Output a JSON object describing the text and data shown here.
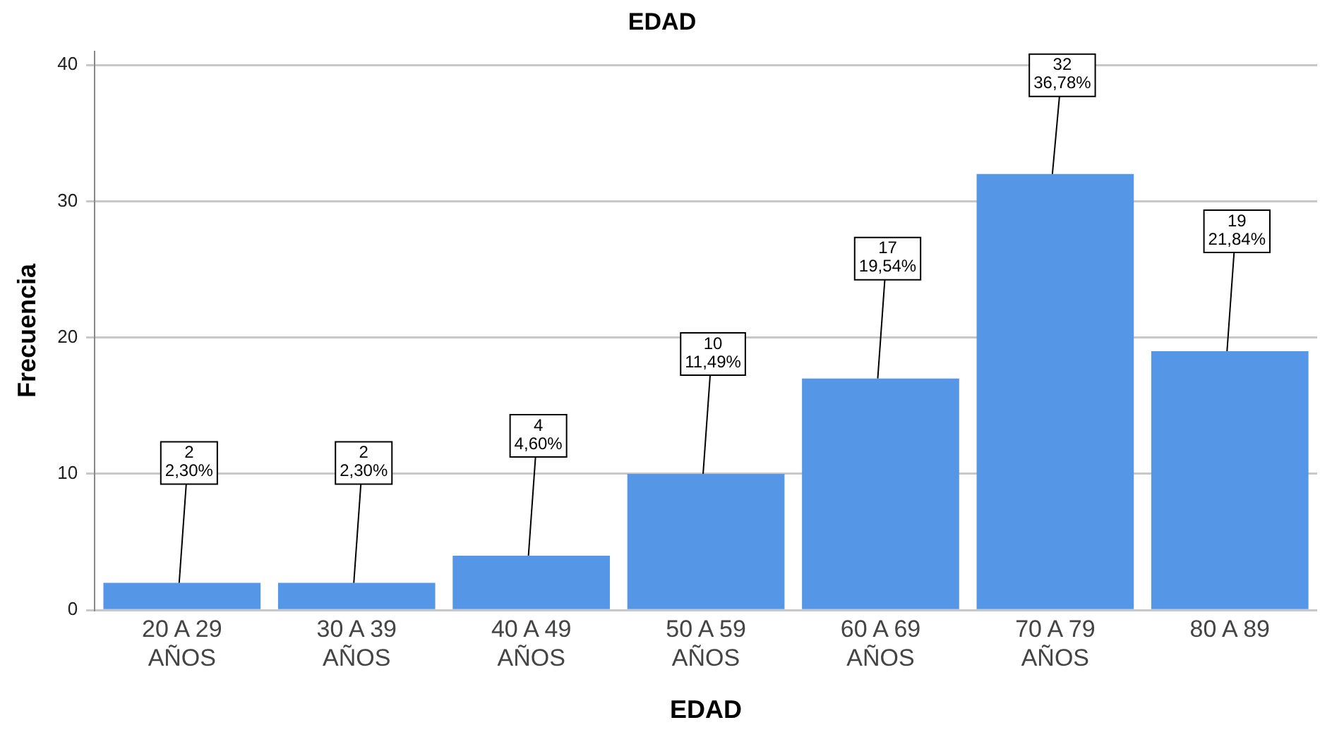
{
  "chart_data": {
    "type": "bar",
    "title": "EDAD",
    "xlabel": "EDAD",
    "ylabel": "Frecuencia",
    "categories": [
      "20 A 29 AÑOS",
      "30 A 39 AÑOS",
      "40 A 49 AÑOS",
      "50 A 59 AÑOS",
      "60 A 69 AÑOS",
      "70 A 79 AÑOS",
      "80 A 89"
    ],
    "values": [
      2,
      2,
      4,
      10,
      17,
      32,
      19
    ],
    "value_labels": [
      "2\n2,30%",
      "2\n2,30%",
      "4\n4,60%",
      "10\n11,49%",
      "17\n19,54%",
      "32\n36,78%",
      "19\n21,84%"
    ],
    "color": "#5596e6",
    "ylim": [
      0,
      41
    ],
    "yticks": [
      0,
      10,
      20,
      30,
      40
    ],
    "grid": "y",
    "legend": false
  }
}
